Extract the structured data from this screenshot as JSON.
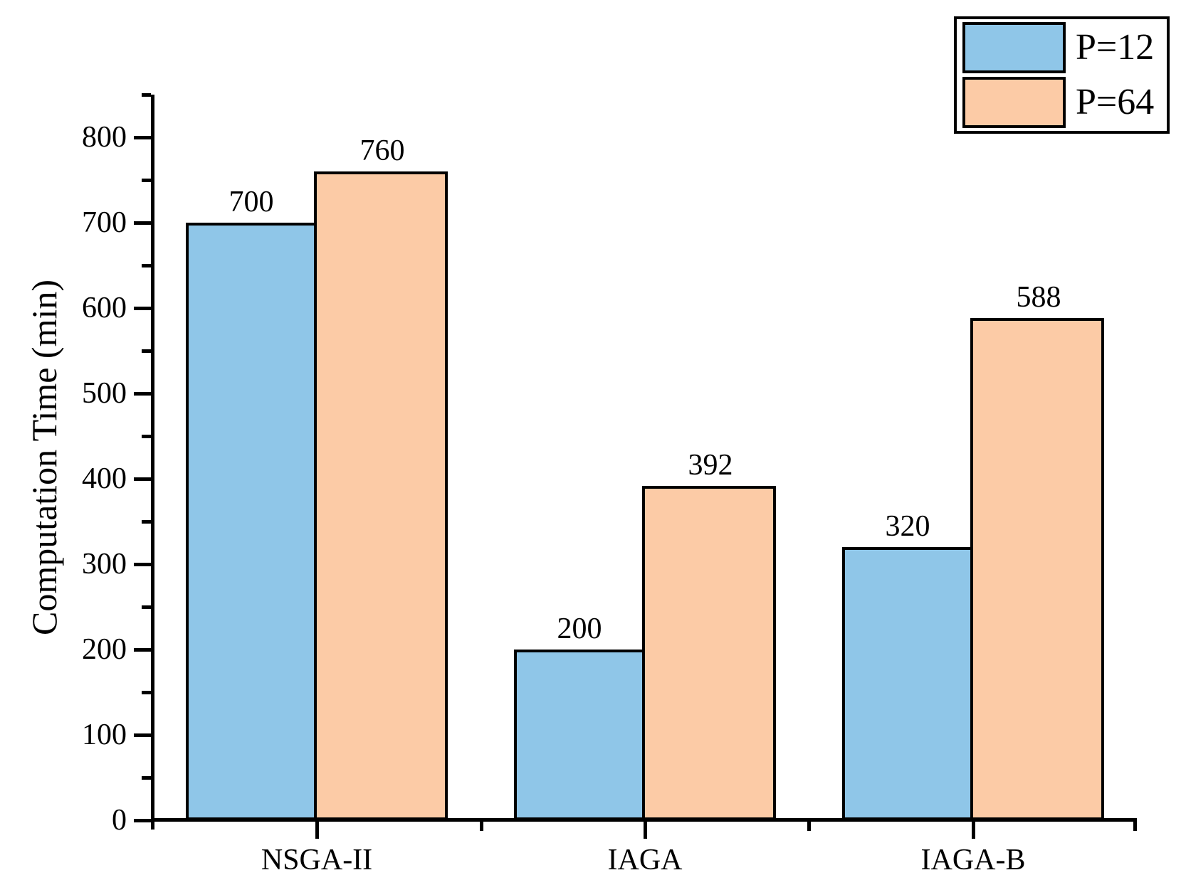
{
  "chart_data": {
    "type": "bar",
    "title": "",
    "categories": [
      "NSGA-II",
      "IAGA",
      "IAGA-B"
    ],
    "series": [
      {
        "name": "P=12",
        "color": "#8FC6E8",
        "values": [
          700,
          200,
          320
        ]
      },
      {
        "name": "P=64",
        "color": "#FCCBA6",
        "values": [
          760,
          392,
          588
        ]
      }
    ],
    "xlabel": "",
    "ylabel": "Computation Time (min)",
    "ylim": [
      0,
      850
    ],
    "y_major_tick_step": 100,
    "y_minor_tick_step": 50,
    "y_tick_labels": [
      "0",
      "100",
      "200",
      "300",
      "400",
      "500",
      "600",
      "700",
      "800"
    ],
    "value_labels_shown": true,
    "grid": false,
    "legend": {
      "position": "top-right"
    },
    "colors": {
      "axis": "#000000",
      "bar_outline": "#000000",
      "background": "#FFFFFF",
      "text": "#000000"
    }
  }
}
